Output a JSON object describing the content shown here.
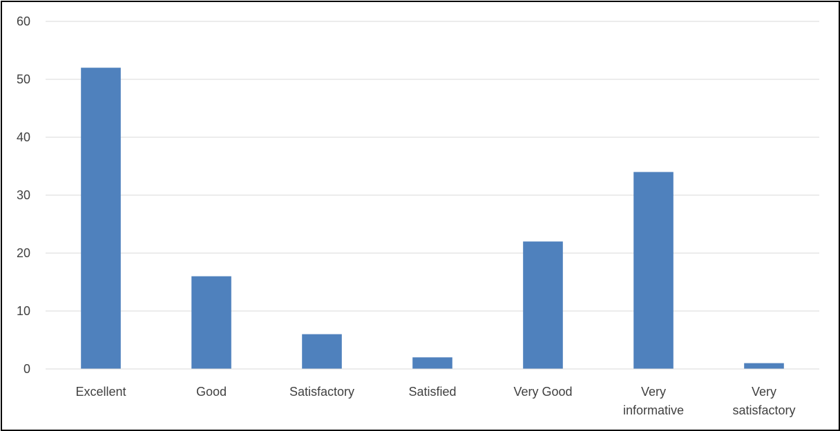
{
  "chart_data": {
    "type": "bar",
    "title": "",
    "xlabel": "",
    "ylabel": "",
    "categories": [
      [
        "Excellent"
      ],
      [
        "Good"
      ],
      [
        "Satisfactory"
      ],
      [
        "Satisfied"
      ],
      [
        "Very Good"
      ],
      [
        "Very",
        "informative"
      ],
      [
        "Very",
        "satisfactory"
      ]
    ],
    "values": [
      52,
      16,
      6,
      2,
      22,
      34,
      1
    ],
    "ylim": [
      0,
      60
    ],
    "yticks": [
      "0",
      "10",
      "20",
      "30",
      "40",
      "50",
      "60"
    ],
    "grid": true,
    "legend": "none",
    "bar_color": "#4f81bd",
    "grid_color": "#d9d9d9",
    "text_color": "#404040"
  }
}
